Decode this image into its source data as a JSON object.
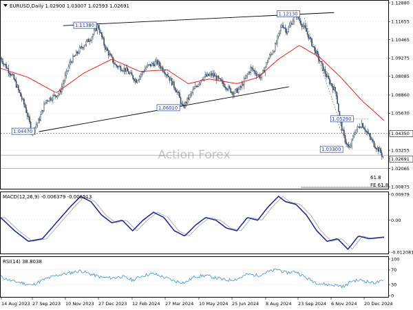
{
  "chart_data": [
    {
      "type": "candlestick",
      "title": "EURUSD,Daily 1.02900 1.03007 1.02593 1.02691",
      "watermark": "Action Forex",
      "price_axis_ticks": [
        "1.12880",
        "1.11655",
        "1.10465",
        "1.09275",
        "1.08085",
        "1.06860",
        "1.05670",
        "1.04350",
        "1.03255",
        "1.02691",
        "1.02065",
        "1.00875"
      ],
      "ylim": [
        1.0088,
        1.1288
      ],
      "x_tick_labels": [
        "14 Aug 2023",
        "27 Sep 2023",
        "10 Nov 2023",
        "27 Dec 2023",
        "12 Feb 2024",
        "27 Mar 2024",
        "10 May 2024",
        "25 Jun 2024",
        "8 Aug 2024",
        "23 Sep 2024",
        "6 Nov 2024",
        "20 Dec 2024"
      ],
      "last_price": 1.02691,
      "price_path_keypoints": [
        {
          "x": 0,
          "y": 1.0925
        },
        {
          "x": 18,
          "y": 1.08
        },
        {
          "x": 35,
          "y": 1.061
        },
        {
          "x": 45,
          "y": 1.0447
        },
        {
          "x": 55,
          "y": 1.052
        },
        {
          "x": 65,
          "y": 1.065
        },
        {
          "x": 85,
          "y": 1.07
        },
        {
          "x": 100,
          "y": 1.09
        },
        {
          "x": 115,
          "y": 1.099
        },
        {
          "x": 130,
          "y": 1.106
        },
        {
          "x": 140,
          "y": 1.1139
        },
        {
          "x": 150,
          "y": 1.1
        },
        {
          "x": 165,
          "y": 1.088
        },
        {
          "x": 180,
          "y": 1.085
        },
        {
          "x": 195,
          "y": 1.078
        },
        {
          "x": 210,
          "y": 1.087
        },
        {
          "x": 225,
          "y": 1.09
        },
        {
          "x": 240,
          "y": 1.082
        },
        {
          "x": 255,
          "y": 1.07
        },
        {
          "x": 262,
          "y": 1.0601
        },
        {
          "x": 275,
          "y": 1.07
        },
        {
          "x": 290,
          "y": 1.08
        },
        {
          "x": 305,
          "y": 1.082
        },
        {
          "x": 320,
          "y": 1.076
        },
        {
          "x": 335,
          "y": 1.07
        },
        {
          "x": 345,
          "y": 1.073
        },
        {
          "x": 360,
          "y": 1.086
        },
        {
          "x": 375,
          "y": 1.08
        },
        {
          "x": 385,
          "y": 1.092
        },
        {
          "x": 395,
          "y": 1.1
        },
        {
          "x": 405,
          "y": 1.115
        },
        {
          "x": 412,
          "y": 1.11
        },
        {
          "x": 425,
          "y": 1.1214
        },
        {
          "x": 440,
          "y": 1.11
        },
        {
          "x": 455,
          "y": 1.095
        },
        {
          "x": 470,
          "y": 1.08
        },
        {
          "x": 483,
          "y": 1.07
        },
        {
          "x": 488,
          "y": 1.0529
        },
        {
          "x": 495,
          "y": 1.04
        },
        {
          "x": 502,
          "y": 1.033
        },
        {
          "x": 510,
          "y": 1.045
        },
        {
          "x": 520,
          "y": 1.05
        },
        {
          "x": 530,
          "y": 1.042
        },
        {
          "x": 538,
          "y": 1.036
        },
        {
          "x": 546,
          "y": 1.032
        },
        {
          "x": 552,
          "y": 1.0269
        }
      ],
      "ma_keypoints": [
        {
          "x": 0,
          "y": 1.086
        },
        {
          "x": 40,
          "y": 1.08
        },
        {
          "x": 80,
          "y": 1.07
        },
        {
          "x": 120,
          "y": 1.083
        },
        {
          "x": 160,
          "y": 1.092
        },
        {
          "x": 200,
          "y": 1.084
        },
        {
          "x": 240,
          "y": 1.085
        },
        {
          "x": 270,
          "y": 1.076
        },
        {
          "x": 300,
          "y": 1.079
        },
        {
          "x": 340,
          "y": 1.076
        },
        {
          "x": 370,
          "y": 1.08
        },
        {
          "x": 400,
          "y": 1.092
        },
        {
          "x": 430,
          "y": 1.101
        },
        {
          "x": 460,
          "y": 1.093
        },
        {
          "x": 490,
          "y": 1.08
        },
        {
          "x": 520,
          "y": 1.065
        },
        {
          "x": 552,
          "y": 1.052
        }
      ],
      "trendlines": [
        {
          "x1": 90,
          "y1": 1.1139,
          "x2": 480,
          "y2": 1.1224
        },
        {
          "x1": 55,
          "y1": 1.0447,
          "x2": 415,
          "y2": 1.074
        }
      ],
      "annotations": [
        {
          "label": "1.11380",
          "x": 105,
          "y": 1.1139
        },
        {
          "label": "1.12130",
          "x": 398,
          "y": 1.1214
        },
        {
          "label": "1.06010",
          "x": 225,
          "y": 1.0601
        },
        {
          "label": "1.04470",
          "x": 16,
          "y": 1.0447
        },
        {
          "label": "1.05290",
          "x": 475,
          "y": 1.0529
        },
        {
          "label": "1.03300",
          "x": 460,
          "y": 1.033
        }
      ],
      "horizontal_lines": [
        {
          "y": 1.0435,
          "style": "dotted",
          "label": "1.04350"
        },
        {
          "y": 1.0294,
          "style": "solid-gray"
        },
        {
          "y": 1.0207,
          "style": "solid-gray"
        }
      ],
      "fe_labels": [
        "61.8",
        "FE 61.8"
      ]
    },
    {
      "type": "line",
      "title": "MACD(12,26,9) -0.006379 -0.006513",
      "ticks": [
        "0.00979",
        "0.00",
        "-0.012081"
      ],
      "ylim": [
        -0.012081,
        0.00979
      ],
      "macd_keypoints": [
        {
          "x": 0,
          "y": 0.001
        },
        {
          "x": 20,
          "y": -0.004
        },
        {
          "x": 40,
          "y": -0.008
        },
        {
          "x": 60,
          "y": -0.007
        },
        {
          "x": 80,
          "y": -0.001
        },
        {
          "x": 100,
          "y": 0.005
        },
        {
          "x": 115,
          "y": 0.009
        },
        {
          "x": 130,
          "y": 0.007
        },
        {
          "x": 145,
          "y": 0.002
        },
        {
          "x": 160,
          "y": -0.001
        },
        {
          "x": 175,
          "y": 0.0
        },
        {
          "x": 190,
          "y": -0.004
        },
        {
          "x": 205,
          "y": 0.0
        },
        {
          "x": 220,
          "y": 0.003
        },
        {
          "x": 235,
          "y": 0.001
        },
        {
          "x": 250,
          "y": -0.004
        },
        {
          "x": 265,
          "y": -0.006
        },
        {
          "x": 280,
          "y": -0.002
        },
        {
          "x": 295,
          "y": 0.001
        },
        {
          "x": 310,
          "y": 0.0
        },
        {
          "x": 325,
          "y": -0.003
        },
        {
          "x": 340,
          "y": -0.004
        },
        {
          "x": 355,
          "y": 0.001
        },
        {
          "x": 370,
          "y": 0.0
        },
        {
          "x": 385,
          "y": 0.005
        },
        {
          "x": 400,
          "y": 0.009
        },
        {
          "x": 410,
          "y": 0.007
        },
        {
          "x": 425,
          "y": 0.006
        },
        {
          "x": 440,
          "y": 0.002
        },
        {
          "x": 455,
          "y": -0.004
        },
        {
          "x": 470,
          "y": -0.008
        },
        {
          "x": 485,
          "y": -0.007
        },
        {
          "x": 500,
          "y": -0.011
        },
        {
          "x": 515,
          "y": -0.006
        },
        {
          "x": 530,
          "y": -0.007
        },
        {
          "x": 552,
          "y": -0.0064
        }
      ],
      "signal_lag": 6
    },
    {
      "type": "line",
      "title": "RSI(14) 38.8038",
      "ticks": [
        "100",
        "70",
        "30",
        "0"
      ],
      "ylim": [
        0,
        100
      ],
      "rsi_keypoints": [
        {
          "x": 0,
          "y": 52
        },
        {
          "x": 15,
          "y": 40
        },
        {
          "x": 30,
          "y": 35
        },
        {
          "x": 45,
          "y": 28
        },
        {
          "x": 60,
          "y": 42
        },
        {
          "x": 80,
          "y": 55
        },
        {
          "x": 100,
          "y": 62
        },
        {
          "x": 115,
          "y": 68
        },
        {
          "x": 130,
          "y": 58
        },
        {
          "x": 145,
          "y": 50
        },
        {
          "x": 160,
          "y": 48
        },
        {
          "x": 175,
          "y": 52
        },
        {
          "x": 190,
          "y": 42
        },
        {
          "x": 205,
          "y": 55
        },
        {
          "x": 220,
          "y": 60
        },
        {
          "x": 235,
          "y": 50
        },
        {
          "x": 250,
          "y": 40
        },
        {
          "x": 265,
          "y": 35
        },
        {
          "x": 280,
          "y": 52
        },
        {
          "x": 295,
          "y": 55
        },
        {
          "x": 310,
          "y": 48
        },
        {
          "x": 325,
          "y": 42
        },
        {
          "x": 340,
          "y": 45
        },
        {
          "x": 355,
          "y": 58
        },
        {
          "x": 370,
          "y": 55
        },
        {
          "x": 385,
          "y": 65
        },
        {
          "x": 400,
          "y": 72
        },
        {
          "x": 410,
          "y": 62
        },
        {
          "x": 425,
          "y": 66
        },
        {
          "x": 440,
          "y": 48
        },
        {
          "x": 455,
          "y": 35
        },
        {
          "x": 470,
          "y": 30
        },
        {
          "x": 485,
          "y": 28
        },
        {
          "x": 495,
          "y": 24
        },
        {
          "x": 505,
          "y": 40
        },
        {
          "x": 520,
          "y": 42
        },
        {
          "x": 535,
          "y": 35
        },
        {
          "x": 552,
          "y": 39
        }
      ]
    }
  ]
}
